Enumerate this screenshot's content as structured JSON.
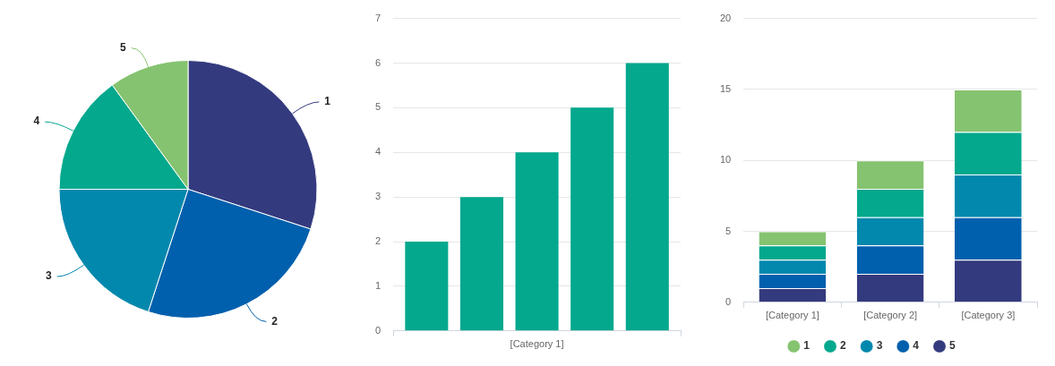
{
  "chart_data": [
    {
      "type": "pie",
      "categories": [
        "1",
        "2",
        "3",
        "4",
        "5"
      ],
      "values": [
        6,
        5,
        4,
        3,
        2
      ],
      "colors": [
        "#343a7e",
        "#0160ad",
        "#0388ad",
        "#03a88d",
        "#85c370"
      ]
    },
    {
      "type": "bar",
      "categories": [
        "[Category 1]"
      ],
      "series": [
        {
          "color": "#03a88d",
          "values": [
            6
          ]
        },
        {
          "color": "#03a88d",
          "values": [
            5
          ]
        },
        {
          "color": "#03a88d",
          "values": [
            4
          ]
        },
        {
          "color": "#03a88d",
          "values": [
            3
          ]
        },
        {
          "color": "#03a88d",
          "values": [
            2
          ]
        }
      ],
      "ylim": [
        0,
        7
      ],
      "yticks": [
        0,
        1,
        2,
        3,
        4,
        5,
        6,
        7
      ],
      "grid": true
    },
    {
      "type": "bar",
      "stacked": true,
      "categories": [
        "[Category 1]",
        "[Category 2]",
        "[Category 3]"
      ],
      "series": [
        {
          "name": "1",
          "color": "#85c370",
          "values": [
            1,
            2,
            3
          ]
        },
        {
          "name": "2",
          "color": "#03a88d",
          "values": [
            1,
            2,
            3
          ]
        },
        {
          "name": "3",
          "color": "#0388ad",
          "values": [
            1,
            2,
            3
          ]
        },
        {
          "name": "4",
          "color": "#0160ad",
          "values": [
            1,
            2,
            3
          ]
        },
        {
          "name": "5",
          "color": "#343a7e",
          "values": [
            1,
            2,
            3
          ]
        }
      ],
      "ylim": [
        0,
        20
      ],
      "yticks": [
        0,
        5,
        10,
        15,
        20
      ],
      "grid": true,
      "legend": "bottom"
    }
  ]
}
